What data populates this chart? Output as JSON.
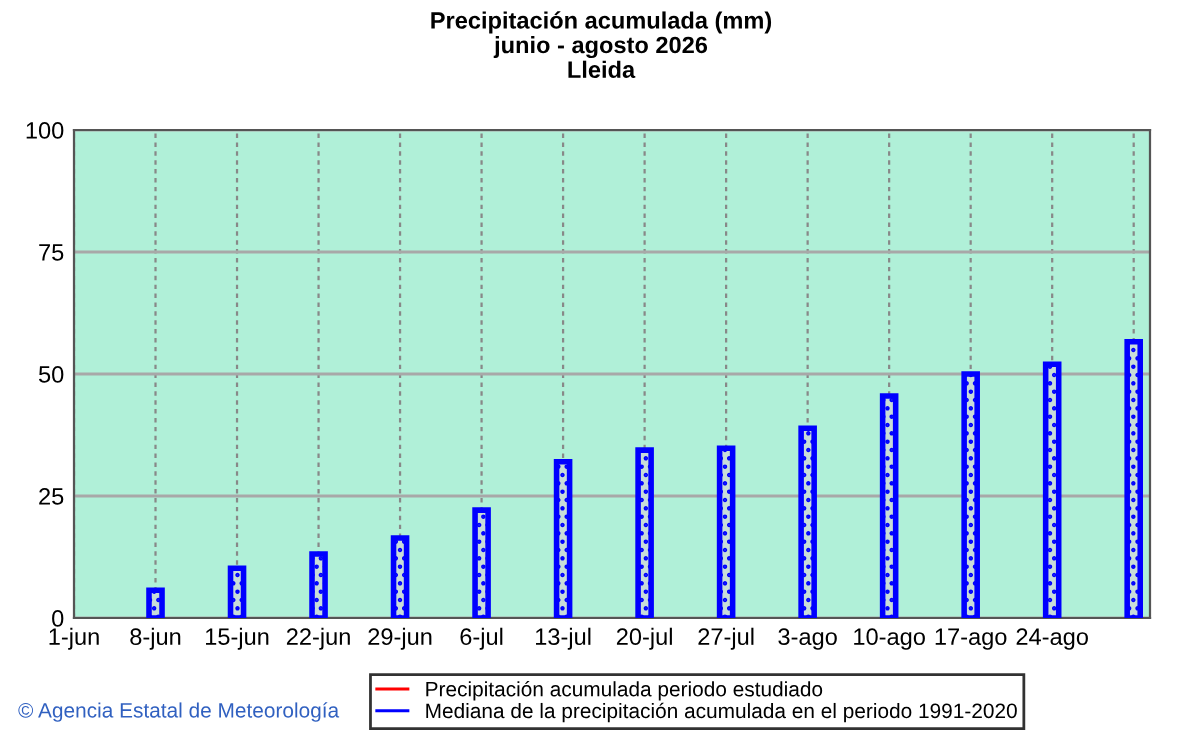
{
  "chart_data": {
    "type": "bar",
    "title": "Precipitación acumulada (mm)",
    "subtitle": "junio - agosto 2026\nLleida",
    "categories": [
      "1-jun",
      "8-jun",
      "15-jun",
      "22-jun",
      "29-jun",
      "6-jul",
      "13-jul",
      "20-jul",
      "27-jul",
      "3-ago",
      "10-ago",
      "17-ago",
      "24-ago",
      null
    ],
    "series": [
      {
        "name": "Precipitación acumulada periodo estudiado",
        "color": "#ff0000",
        "values": [
          null,
          null,
          null,
          null,
          null,
          null,
          null,
          null,
          null,
          null,
          null,
          null,
          null,
          null
        ]
      },
      {
        "name": "Mediana de la precipitación acumulada en el periodo 1991-2020",
        "color": "#0000ff",
        "values": [
          null,
          5.7,
          10.2,
          13.1,
          16.4,
          22.1,
          32,
          34.4,
          34.8,
          38.9,
          45.5,
          50,
          52,
          56.6
        ]
      }
    ],
    "ylim": [
      0,
      100
    ],
    "yticks": [
      0,
      25,
      50,
      75,
      100
    ],
    "grid": true,
    "legend": "bottom",
    "annotations": [
      "© Agencia Estatal de Meteorología"
    ]
  }
}
